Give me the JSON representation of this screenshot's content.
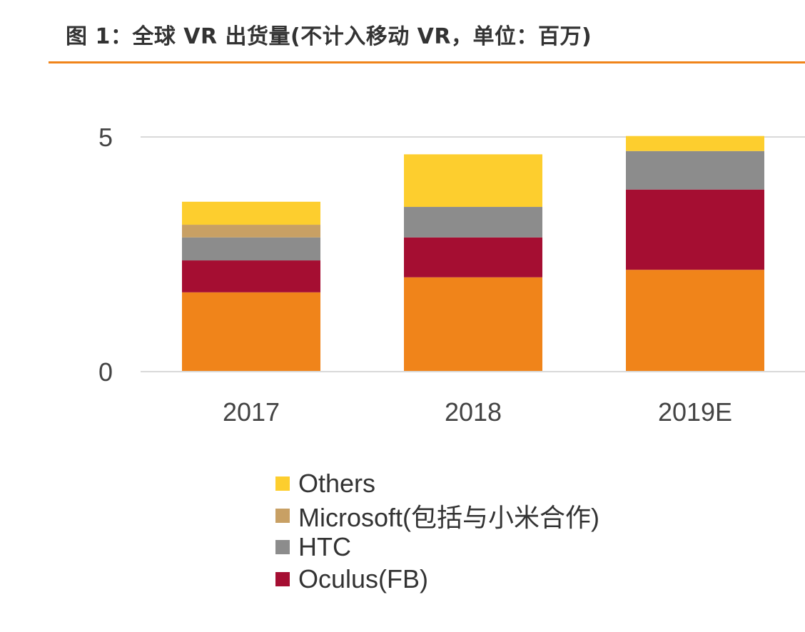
{
  "title": "图 1：全球 VR 出货量(不计入移动 VR，单位：百万)",
  "accent_color": "#F0841A",
  "chart_data": {
    "type": "bar",
    "stacked": true,
    "categories": [
      "2017",
      "2018",
      "2019E"
    ],
    "ylim": [
      0,
      5
    ],
    "yticks": [
      "0",
      "5"
    ],
    "grid": true,
    "legend_position": "bottom",
    "series": [
      {
        "color": "#F0841A",
        "values": [
          1.69,
          2.01,
          2.17
        ]
      },
      {
        "name": "Oculus(FB)",
        "color": "#A50E32",
        "values": [
          0.68,
          0.85,
          1.71
        ]
      },
      {
        "name": "HTC",
        "color": "#8C8C8C",
        "values": [
          0.49,
          0.65,
          0.82
        ]
      },
      {
        "name": "Microsoft(包括与小米合作)",
        "color": "#C8A064",
        "values": [
          0.27,
          0,
          0
        ]
      },
      {
        "name": "Others",
        "color": "#FDCE2E",
        "values": [
          0.49,
          1.12,
          0.32
        ]
      }
    ],
    "legend": [
      "Others",
      "Microsoft(包括与小米合作)",
      "HTC",
      "Oculus(FB)"
    ]
  }
}
